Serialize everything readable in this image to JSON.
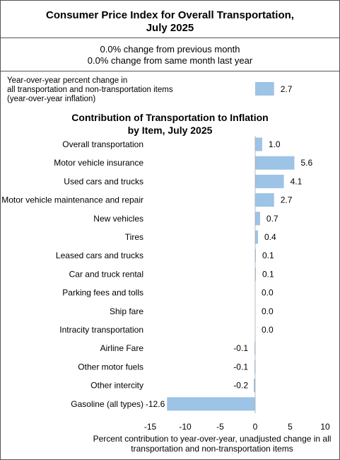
{
  "header": {
    "title_line1": "Consumer Price Index for Overall Transportation,",
    "title_line2": "July 2025",
    "change_month": "0.0% change from previous month",
    "change_year": "0.0% change from same month last year"
  },
  "yoy": {
    "label_line1": "Year-over-year percent change in",
    "label_line2": "all transportation and non-transportation items",
    "label_line3": "(year-over-year inflation)",
    "value": 2.7,
    "value_label": "2.7"
  },
  "colors": {
    "bar": "#9dc3e6",
    "border": "#555555"
  },
  "chart_data": {
    "type": "bar",
    "orientation": "horizontal",
    "title_line1": "Contribution of Transportation to Inflation",
    "title_line2": "by Item, July 2025",
    "categories": [
      "Overall transportation",
      "Motor vehicle insurance",
      "Used cars and trucks",
      "Motor vehicle maintenance and repair",
      "New vehicles",
      "Tires",
      "Leased cars and trucks",
      "Car and truck rental",
      "Parking fees and tolls",
      "Ship fare",
      "Intracity transportation",
      "Airline Fare",
      "Other motor fuels",
      "Other intercity",
      "Gasoline (all types)"
    ],
    "values": [
      1.0,
      5.6,
      4.1,
      2.7,
      0.7,
      0.4,
      0.1,
      0.1,
      0.0,
      0.0,
      0.0,
      -0.1,
      -0.1,
      -0.2,
      -12.6
    ],
    "value_labels": [
      "1.0",
      "5.6",
      "4.1",
      "2.7",
      "0.7",
      "0.4",
      "0.1",
      "0.1",
      "0.0",
      "0.0",
      "0.0",
      "-0.1",
      "-0.1",
      "-0.2",
      "-12.6"
    ],
    "xlim": [
      -15,
      10
    ],
    "xticks": [
      "-15",
      "-10",
      "-5",
      "0",
      "5",
      "10"
    ],
    "xlabel_line1": "Percent contribution to year-over-year,  unadjusted change in all",
    "xlabel_line2": "transportation and non-transportation items",
    "grid": false
  }
}
